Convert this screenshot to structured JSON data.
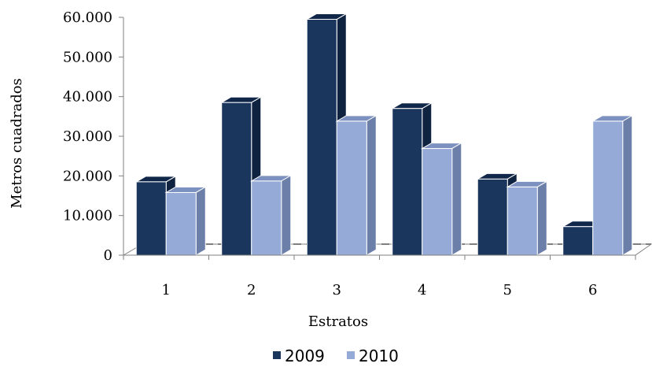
{
  "chart_data": {
    "type": "bar",
    "categories": [
      "1",
      "2",
      "3",
      "4",
      "5",
      "6"
    ],
    "series": [
      {
        "name": "2009",
        "values": [
          18500,
          38500,
          59500,
          37000,
          19200,
          7200
        ]
      },
      {
        "name": "2010",
        "values": [
          15800,
          18700,
          33800,
          26900,
          17200,
          33800
        ]
      }
    ],
    "xlabel": "Estratos",
    "ylabel": "Metros cuadrados",
    "ylim": [
      0,
      60000
    ],
    "yticks": [
      "0",
      "10.000",
      "20.000",
      "30.000",
      "40.000",
      "50.000",
      "60.000"
    ],
    "grid": false,
    "legend_position": "bottom",
    "three_d": true
  },
  "colors": {
    "series_2009": {
      "front": "#1b365d",
      "side": "#0f2240",
      "top": "#10274a"
    },
    "series_2010": {
      "front": "#95aad6",
      "side": "#6b7fa9",
      "top": "#7d91c0"
    },
    "bar_outline": "#ffffff",
    "axis": "#808080",
    "floor_line": "#808080"
  }
}
